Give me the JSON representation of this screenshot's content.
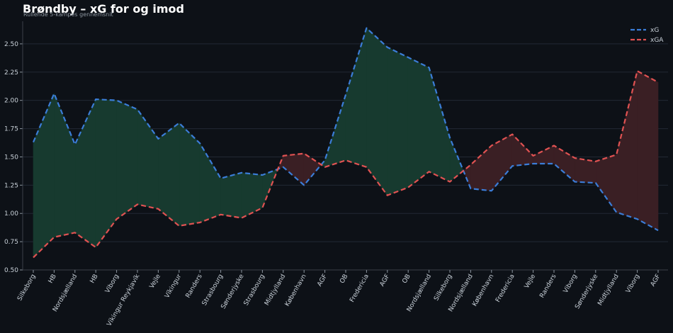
{
  "chart_data": {
    "type": "line",
    "title": "Brøndby – xG for og imod",
    "subtitle": "Rullende 5-kampes gennemsnit",
    "xlabel": "",
    "ylabel": "",
    "ylim": [
      0.5,
      2.7
    ],
    "yticks": [
      "0.50",
      "0.75",
      "1.00",
      "1.25",
      "1.50",
      "1.75",
      "2.00",
      "2.25",
      "2.50"
    ],
    "grid": true,
    "legend_position": "top-right",
    "categories": [
      "Silkeborg",
      "HB",
      "Nordsjælland",
      "HB",
      "Viborg",
      "Víkingur Reykjavík",
      "Vejle",
      "Víkingur",
      "Randers",
      "Strasbourg",
      "Sønderjyske",
      "Strasbourg",
      "Midtjylland",
      "København",
      "AGF",
      "OB",
      "Fredericia",
      "AGF",
      "OB",
      "Nordsjælland",
      "Silkeborg",
      "Nordsjælland",
      "København",
      "Fredericia",
      "Vejle",
      "Randers",
      "Viborg",
      "Sønderjyske",
      "Midtjylland",
      "Viborg",
      "AGF"
    ],
    "series": [
      {
        "name": "xG",
        "color": "#3b7dd8",
        "values": [
          1.63,
          2.06,
          1.61,
          2.01,
          2.0,
          1.92,
          1.66,
          1.8,
          1.62,
          1.31,
          1.36,
          1.34,
          1.41,
          1.25,
          1.47,
          2.05,
          2.64,
          2.47,
          2.38,
          2.29,
          1.67,
          1.22,
          1.2,
          1.42,
          1.44,
          1.44,
          1.28,
          1.27,
          1.01,
          0.95,
          0.85
        ]
      },
      {
        "name": "xGA",
        "color": "#e05252",
        "values": [
          0.61,
          0.79,
          0.83,
          0.7,
          0.95,
          1.08,
          1.04,
          0.89,
          0.92,
          0.99,
          0.96,
          1.05,
          1.51,
          1.53,
          1.41,
          1.47,
          1.41,
          1.16,
          1.23,
          1.37,
          1.28,
          1.43,
          1.6,
          1.7,
          1.51,
          1.6,
          1.49,
          1.46,
          1.52,
          2.26,
          2.16
        ]
      }
    ],
    "fill_colors": {
      "xg_above": "#173a2f",
      "xga_above": "#3a1f24"
    }
  }
}
